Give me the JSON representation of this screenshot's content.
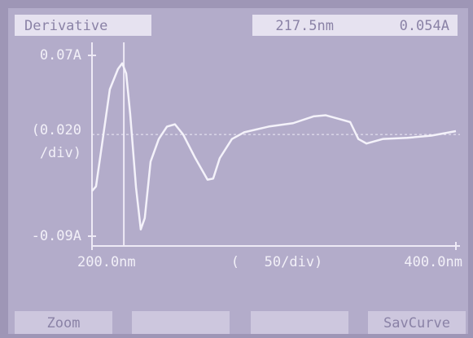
{
  "screen": {
    "mode": "Derivative",
    "buttons": [
      "Zoom",
      "SavCurve"
    ]
  },
  "chart_data": {
    "type": "line",
    "x": [
      200,
      202.2,
      205.4,
      209.8,
      214.3,
      216.6,
      218.8,
      221,
      224.2,
      226.8,
      229,
      232.2,
      236.7,
      241.2,
      245.6,
      250.1,
      256.8,
      263.5,
      266.6,
      270.2,
      276.9,
      283.7,
      297.1,
      310.5,
      321.7,
      328.5,
      335.2,
      341.9,
      346.4,
      350.9,
      359.8,
      373.2,
      386.6,
      400
    ],
    "values": [
      -0.05,
      -0.046,
      -0.01,
      0.04,
      0.058,
      0.063,
      0.054,
      0.018,
      -0.047,
      -0.084,
      -0.074,
      -0.024,
      -0.004,
      0.007,
      0.009,
      0,
      -0.021,
      -0.04,
      -0.039,
      -0.021,
      -0.004,
      0.002,
      0.007,
      0.01,
      0.016,
      0.017,
      0.014,
      0.011,
      -0.004,
      -0.008,
      -0.004,
      -0.003,
      -0.001,
      0.003
    ],
    "color": "#f4f2fa",
    "xlim": [
      200,
      400
    ],
    "ylim": [
      -0.09,
      0.07
    ],
    "xticks": [
      {
        "value": 200,
        "label": "200.0nm"
      },
      {
        "value": 400,
        "label": "400.0nm"
      }
    ],
    "yticks": [
      {
        "value": 0.07,
        "label": "0.07A"
      },
      {
        "value": -0.09,
        "label": "-0.09A"
      }
    ],
    "x_annotation": "(   50/div)",
    "y_annotation": [
      "(0.020",
      "/div)"
    ],
    "reference_line": 0,
    "cursor": {
      "x": 217.5,
      "x_label": "217.5nm",
      "value": 0.054,
      "value_label": "0.054A"
    }
  }
}
